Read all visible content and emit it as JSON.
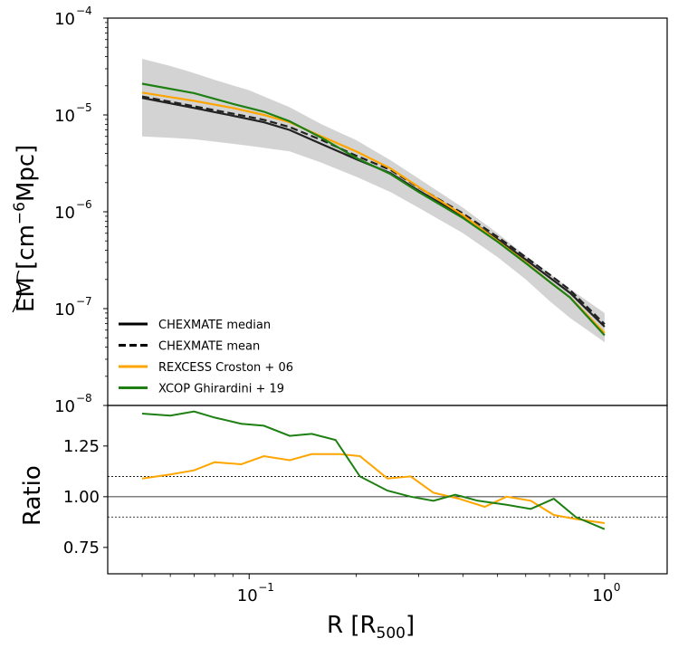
{
  "chart_data": [
    {
      "type": "line",
      "panel": "top",
      "ylabel": "ẼM [cm−6Mpc]",
      "ylabel_main": "EM",
      "ylabel_units": "[cm",
      "ylabel_exp": "−6",
      "ylabel_units2": "Mpc]",
      "yscale": "log",
      "xscale": "log",
      "xlim": [
        0.04,
        1.5
      ],
      "ylim": [
        1e-08,
        0.0001
      ],
      "yticks": [
        {
          "value": 0.0001,
          "base": "10",
          "exp": "−4"
        },
        {
          "value": 1e-05,
          "base": "10",
          "exp": "−5"
        },
        {
          "value": 1e-06,
          "base": "10",
          "exp": "−6"
        },
        {
          "value": 1e-07,
          "base": "10",
          "exp": "−7"
        },
        {
          "value": 1e-08,
          "base": "10",
          "exp": "−8"
        }
      ],
      "band": {
        "x": [
          0.05,
          0.06,
          0.07,
          0.08,
          0.1,
          0.13,
          0.16,
          0.2,
          0.25,
          0.3,
          0.4,
          0.5,
          0.6,
          0.7,
          0.8,
          1.0
        ],
        "upper": [
          3.8e-05,
          3.2e-05,
          2.7e-05,
          2.3e-05,
          1.8e-05,
          1.2e-05,
          8e-06,
          5.5e-06,
          3.4e-06,
          2.2e-06,
          1.1e-06,
          6e-07,
          3.5e-07,
          2.3e-07,
          1.6e-07,
          9e-08
        ],
        "lower": [
          6e-06,
          5.8e-06,
          5.6e-06,
          5.3e-06,
          4.8e-06,
          4.2e-06,
          3.2e-06,
          2.3e-06,
          1.6e-06,
          1.1e-06,
          6e-07,
          3.4e-07,
          2e-07,
          1.2e-07,
          8e-08,
          4.5e-08
        ]
      },
      "series": [
        {
          "name": "CHEXMATE median",
          "color": "#222222",
          "dash": "solid",
          "x": [
            0.05,
            0.07,
            0.09,
            0.11,
            0.13,
            0.16,
            0.2,
            0.25,
            0.3,
            0.4,
            0.5,
            0.6,
            0.7,
            0.8,
            1.0
          ],
          "y": [
            1.5e-05,
            1.18e-05,
            9.8e-06,
            8.4e-06,
            7e-06,
            5e-06,
            3.5e-06,
            2.5e-06,
            1.65e-06,
            9e-07,
            5.2e-07,
            3.2e-07,
            2.1e-07,
            1.45e-07,
            6.5e-08
          ]
        },
        {
          "name": "CHEXMATE mean",
          "color": "#222222",
          "dash": "dashed",
          "x": [
            0.05,
            0.07,
            0.09,
            0.11,
            0.13,
            0.16,
            0.2,
            0.25,
            0.3,
            0.4,
            0.5,
            0.6,
            0.7,
            0.8,
            1.0
          ],
          "y": [
            1.55e-05,
            1.23e-05,
            1.03e-05,
            8.9e-06,
            7.5e-06,
            5.5e-06,
            3.8e-06,
            2.7e-06,
            1.78e-06,
            9.6e-07,
            5.5e-07,
            3.4e-07,
            2.25e-07,
            1.55e-07,
            6.9e-08
          ]
        },
        {
          "name": "REXCESS Croston + 06",
          "color": "#FFA500",
          "dash": "solid",
          "x": [
            0.05,
            0.07,
            0.09,
            0.11,
            0.13,
            0.16,
            0.2,
            0.25,
            0.3,
            0.4,
            0.5,
            0.6,
            0.7,
            0.8,
            1.0
          ],
          "y": [
            1.7e-05,
            1.4e-05,
            1.18e-05,
            1e-05,
            8.4e-06,
            6e-06,
            4.2e-06,
            2.8e-06,
            1.8e-06,
            9.2e-07,
            5e-07,
            3e-07,
            1.9e-07,
            1.3e-07,
            5.6e-08
          ]
        },
        {
          "name": "XCOP Ghirardini + 19",
          "color": "#1E8013",
          "dash": "solid",
          "x": [
            0.05,
            0.07,
            0.09,
            0.11,
            0.13,
            0.16,
            0.2,
            0.25,
            0.3,
            0.4,
            0.5,
            0.6,
            0.7,
            0.8,
            1.0
          ],
          "y": [
            2.1e-05,
            1.68e-05,
            1.3e-05,
            1.08e-05,
            8.6e-06,
            5.8e-06,
            3.6e-06,
            2.45e-06,
            1.6e-06,
            8.6e-07,
            4.9e-07,
            2.95e-07,
            1.9e-07,
            1.3e-07,
            5.3e-08
          ]
        }
      ]
    },
    {
      "type": "line",
      "panel": "bottom",
      "xlabel": "R [R500]",
      "xlabel_main": "R [R",
      "xlabel_sub": "500",
      "xlabel_end": "]",
      "ylabel": "Ratio",
      "xscale": "log",
      "xlim": [
        0.04,
        1.5
      ],
      "ylim": [
        0.62,
        1.45
      ],
      "yticks": [
        "0.75",
        "1.00",
        "1.25"
      ],
      "ytick_values": [
        0.75,
        1.0,
        1.25
      ],
      "xticks": [
        {
          "value": 0.1,
          "base": "10",
          "exp": "−1"
        },
        {
          "value": 1.0,
          "base": "10",
          "exp": "0"
        }
      ],
      "reference_lines": [
        {
          "value": 1.0,
          "style": "solid"
        },
        {
          "value": 1.1,
          "style": "dotted"
        },
        {
          "value": 0.9,
          "style": "dotted"
        }
      ],
      "series": [
        {
          "name": "REXCESS Croston + 06",
          "color": "#FFA500",
          "x": [
            0.05,
            0.06,
            0.07,
            0.08,
            0.095,
            0.11,
            0.13,
            0.15,
            0.18,
            0.205,
            0.245,
            0.285,
            0.33,
            0.39,
            0.46,
            0.53,
            0.62,
            0.72,
            0.83,
            1.0
          ],
          "y": [
            1.09,
            1.11,
            1.13,
            1.17,
            1.16,
            1.2,
            1.18,
            1.21,
            1.21,
            1.2,
            1.09,
            1.1,
            1.02,
            0.99,
            0.95,
            1.0,
            0.98,
            0.91,
            0.89,
            0.87
          ]
        },
        {
          "name": "XCOP Ghirardini + 19",
          "color": "#1E8013",
          "x": [
            0.05,
            0.06,
            0.07,
            0.08,
            0.095,
            0.11,
            0.13,
            0.15,
            0.175,
            0.205,
            0.245,
            0.285,
            0.33,
            0.38,
            0.44,
            0.53,
            0.62,
            0.72,
            0.83,
            1.0
          ],
          "y": [
            1.41,
            1.4,
            1.42,
            1.39,
            1.36,
            1.35,
            1.3,
            1.31,
            1.28,
            1.1,
            1.03,
            1.0,
            0.98,
            1.01,
            0.98,
            0.96,
            0.94,
            0.99,
            0.9,
            0.84
          ]
        }
      ]
    }
  ],
  "legend": {
    "items": [
      {
        "label": "CHEXMATE median",
        "color": "#000000",
        "dash": "solid"
      },
      {
        "label": "CHEXMATE mean",
        "color": "#000000",
        "dash": "dashed"
      },
      {
        "label": "REXCESS Croston + 06",
        "color": "#FFA500",
        "dash": "solid"
      },
      {
        "label": "XCOP Ghirardini + 19",
        "color": "#1E8013",
        "dash": "solid"
      }
    ],
    "position": "lower-left"
  }
}
